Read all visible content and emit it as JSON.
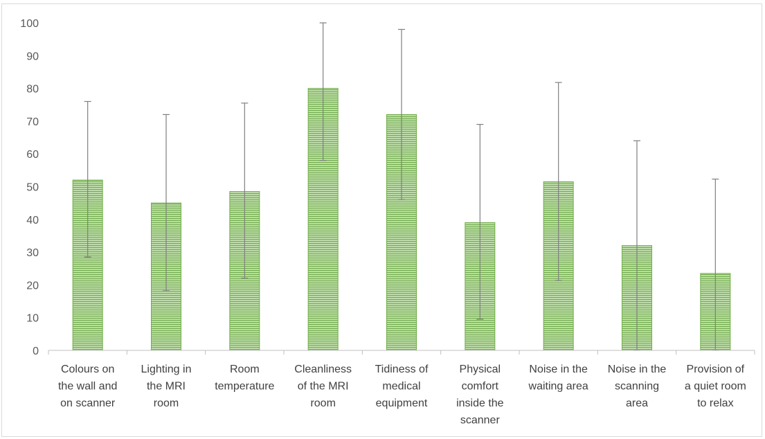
{
  "chart_data": {
    "type": "bar",
    "title": "",
    "xlabel": "",
    "ylabel": "",
    "ylim": [
      0,
      100
    ],
    "yticks": [
      0,
      10,
      20,
      30,
      40,
      50,
      60,
      70,
      80,
      90,
      100
    ],
    "grid": false,
    "legend": "none",
    "colors": {
      "bar_fill": "#a9d18e",
      "bar_stripe": "#70ad47",
      "error_bar": "#7f7f7f",
      "axis": "#bfbfbf"
    },
    "categories": [
      [
        "Colours on",
        "the wall and",
        "on scanner"
      ],
      [
        "Lighting in",
        "the MRI",
        "room"
      ],
      [
        "Room",
        "temperature"
      ],
      [
        "Cleanliness",
        "of the MRI",
        "room"
      ],
      [
        "Tidiness of",
        "medical",
        "equipment"
      ],
      [
        "Physical",
        "comfort",
        "inside the",
        "scanner"
      ],
      [
        "Noise in the",
        "waiting area"
      ],
      [
        "Noise in the",
        "scanning",
        "area"
      ],
      [
        "Provision of",
        "a quiet room",
        "to relax"
      ]
    ],
    "values": [
      52,
      45,
      48.5,
      80,
      72,
      39,
      51.5,
      32,
      23.5
    ],
    "error_low": [
      28.5,
      18.2,
      22,
      58,
      46,
      9.5,
      21.3,
      0,
      0
    ],
    "error_high": [
      76,
      72,
      75.5,
      100,
      98,
      69,
      81.8,
      64,
      52.3
    ]
  }
}
